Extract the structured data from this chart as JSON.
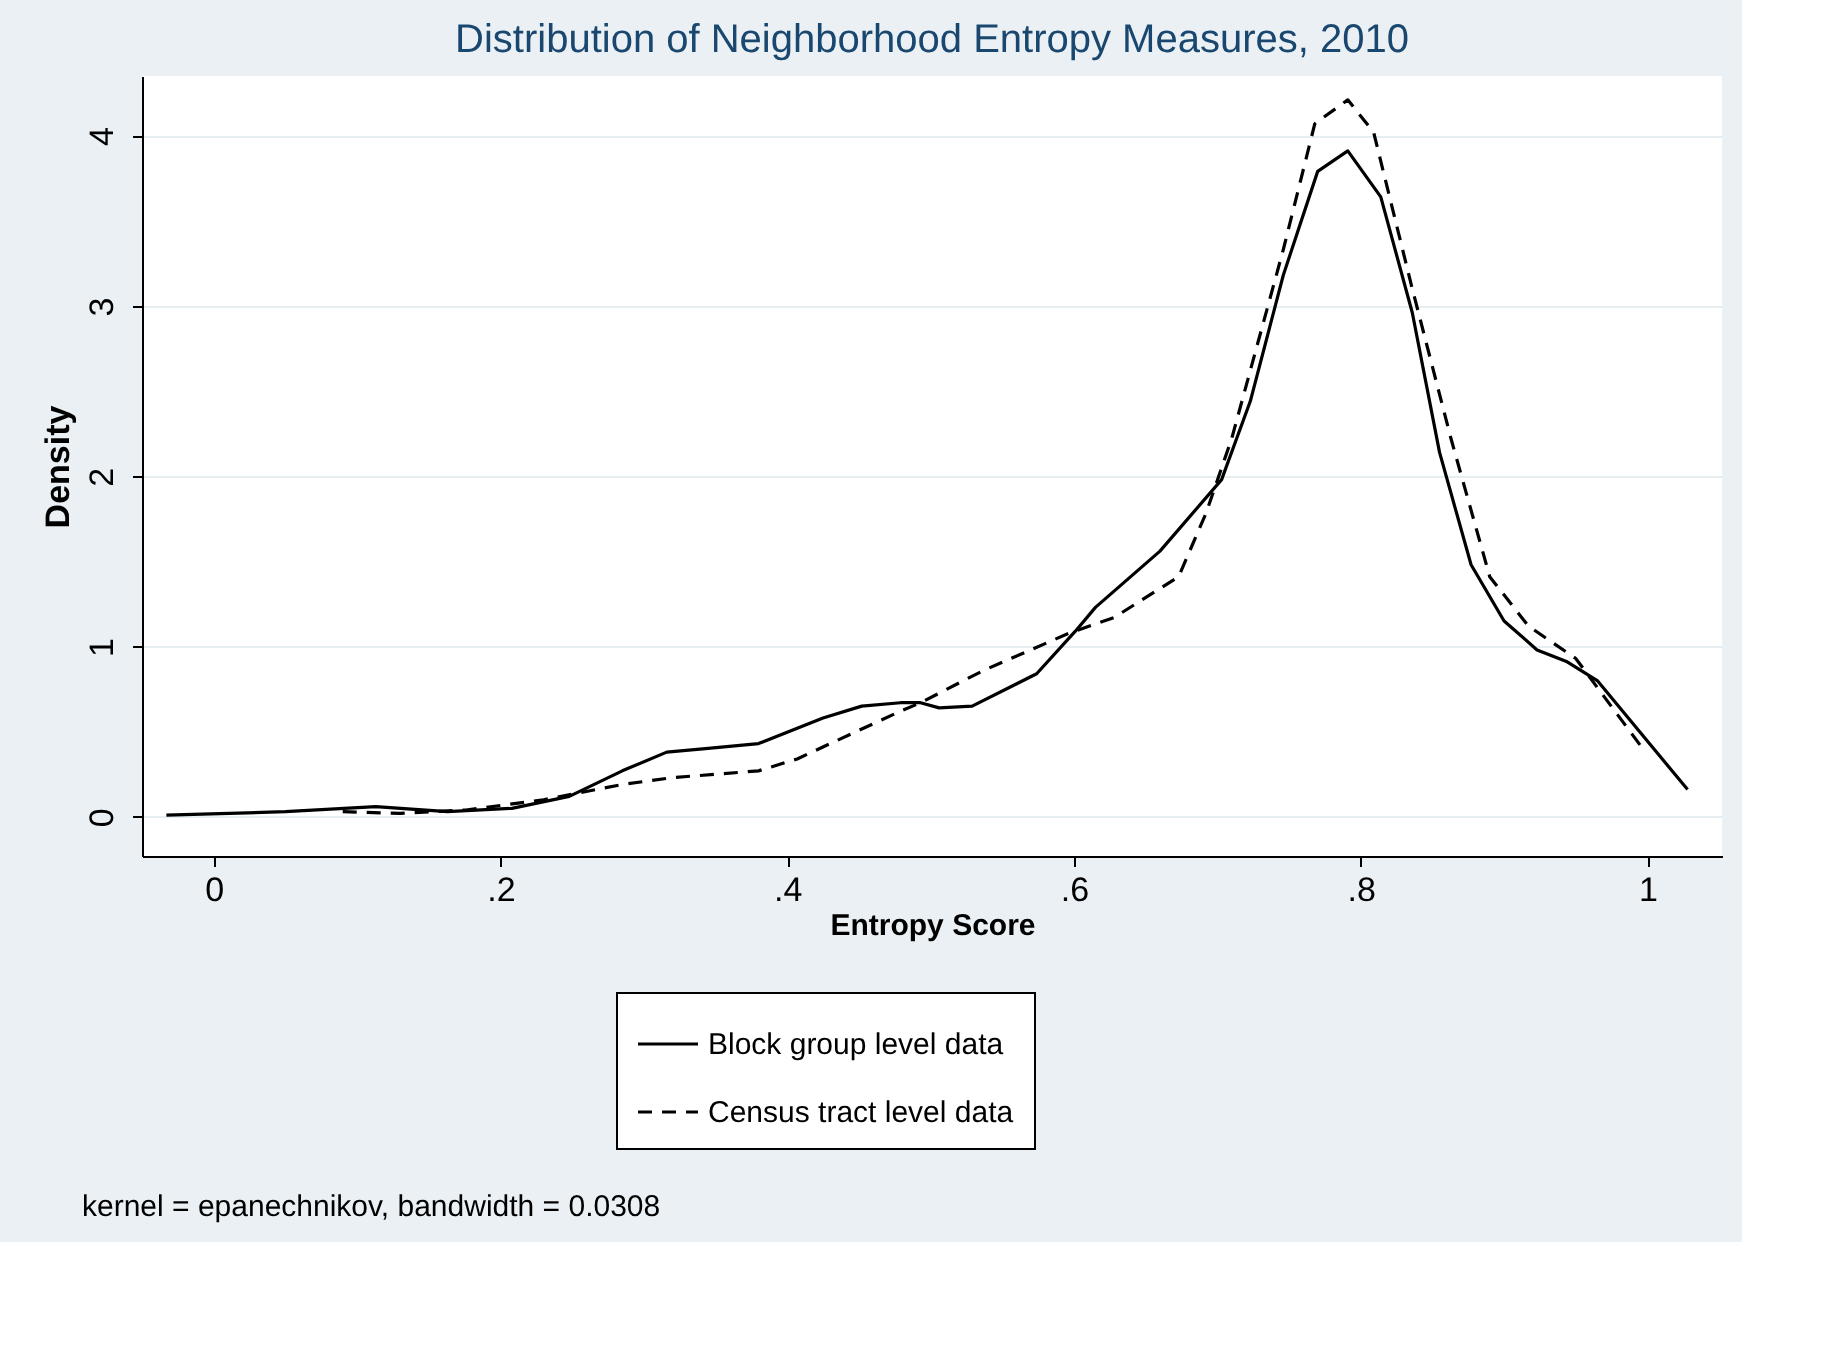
{
  "chart_data": {
    "type": "line",
    "title": "Distribution of Neighborhood Entropy Measures, 2010",
    "xlabel": "Entropy Score",
    "ylabel": "Density",
    "series": [
      {
        "name": "Block group level data",
        "color": "#000000",
        "line_style": "solid",
        "x": [
          -0.033,
          0.05,
          0.113,
          0.163,
          0.208,
          0.248,
          0.285,
          0.316,
          0.343,
          0.38,
          0.425,
          0.452,
          0.479,
          0.493,
          0.506,
          0.529,
          0.574,
          0.601,
          0.615,
          0.66,
          0.703,
          0.723,
          0.746,
          0.77,
          0.791,
          0.814,
          0.836,
          0.855,
          0.877,
          0.9,
          0.923,
          0.944,
          0.965,
          1.028
        ],
        "values": [
          0.01,
          0.03,
          0.06,
          0.03,
          0.05,
          0.12,
          0.27,
          0.38,
          0.4,
          0.43,
          0.58,
          0.65,
          0.67,
          0.67,
          0.64,
          0.65,
          0.84,
          1.09,
          1.23,
          1.56,
          1.98,
          2.44,
          3.18,
          3.79,
          3.91,
          3.64,
          2.96,
          2.14,
          1.48,
          1.15,
          0.98,
          0.91,
          0.8,
          0.16
        ]
      },
      {
        "name": "Census tract level data",
        "color": "#000000",
        "line_style": "dashed",
        "x": [
          0.09,
          0.13,
          0.176,
          0.23,
          0.285,
          0.32,
          0.38,
          0.407,
          0.448,
          0.479,
          0.493,
          0.537,
          0.597,
          0.628,
          0.673,
          0.692,
          0.71,
          0.746,
          0.768,
          0.791,
          0.809,
          0.836,
          0.863,
          0.89,
          0.917,
          0.95,
          0.995
        ],
        "values": [
          0.03,
          0.02,
          0.04,
          0.1,
          0.19,
          0.23,
          0.27,
          0.34,
          0.5,
          0.62,
          0.67,
          0.86,
          1.08,
          1.17,
          1.41,
          1.78,
          2.22,
          3.33,
          4.07,
          4.21,
          4.02,
          3.1,
          2.22,
          1.41,
          1.12,
          0.93,
          0.42
        ]
      }
    ],
    "xlim": [
      -0.05,
      1.052
    ],
    "ylim": [
      -0.23,
      4.35
    ],
    "xticks": [
      0,
      {
        "value": 0.2,
        "label": ".2"
      },
      {
        "value": 0.4,
        "label": ".4"
      },
      {
        "value": 0.6,
        "label": ".6"
      },
      {
        "value": 0.8,
        "label": ".8"
      },
      1
    ],
    "yticks": [
      0,
      1,
      2,
      3,
      4
    ],
    "grid": "y",
    "legend": "bottom",
    "annotations": [
      "kernel = epanechnikov, bandwidth = 0.0308"
    ]
  }
}
